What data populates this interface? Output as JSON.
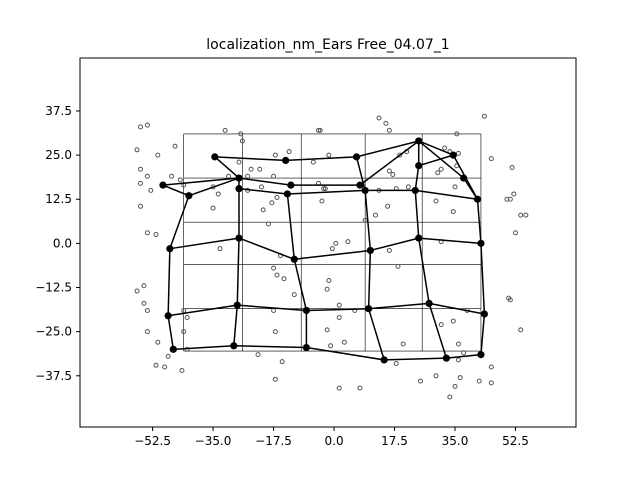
{
  "chart_data": {
    "type": "scatter",
    "title": "localization_nm_Ears Free_04.07_1",
    "xlabel": "",
    "ylabel": "",
    "xlim": [
      -73.5,
      70
    ],
    "ylim": [
      -52,
      52.5
    ],
    "xticks": [
      -52.5,
      -35.0,
      -17.5,
      0.0,
      17.5,
      35.0,
      52.5
    ],
    "yticks": [
      37.5,
      25.0,
      12.5,
      0.0,
      -12.5,
      -25.0,
      -37.5
    ],
    "xtick_labels": [
      "−52.5",
      "−35.0",
      "−17.5",
      "0.0",
      "17.5",
      "35.0",
      "52.5"
    ],
    "ytick_labels": [
      "37.5",
      "25.0",
      "12.5",
      "0.0",
      "−12.5",
      "−25.0",
      "−37.5"
    ],
    "grid": {
      "x_lines": [
        -43.5,
        -26.5,
        -9.5,
        9.0,
        25.5,
        42.5
      ],
      "y_lines": [
        31.0,
        18.5,
        6.0,
        -6.0,
        -18.5,
        -30.5
      ]
    },
    "colors": {
      "mesh": "#000000",
      "scatter": "#555555",
      "grid": "#000000"
    },
    "mesh_nodes": [
      [
        -49.5,
        16.5
      ],
      [
        -42.0,
        13.5
      ],
      [
        -34.5,
        24.5
      ],
      [
        -27.5,
        18.5
      ],
      [
        -14.0,
        23.5
      ],
      [
        -12.5,
        16.5
      ],
      [
        6.5,
        24.5
      ],
      [
        7.5,
        16.5
      ],
      [
        24.5,
        29.0
      ],
      [
        34.5,
        25.0
      ],
      [
        37.5,
        18.5
      ],
      [
        41.5,
        12.5
      ],
      [
        -27.5,
        15.5
      ],
      [
        -13.5,
        14.0
      ],
      [
        9.0,
        15.0
      ],
      [
        23.5,
        15.0
      ],
      [
        24.5,
        22.0
      ],
      [
        -47.5,
        -1.5
      ],
      [
        -27.5,
        1.5
      ],
      [
        -11.5,
        -4.5
      ],
      [
        10.5,
        -2.0
      ],
      [
        24.5,
        1.5
      ],
      [
        42.5,
        0.0
      ],
      [
        -48.0,
        -20.5
      ],
      [
        -28.0,
        -17.5
      ],
      [
        -8.0,
        -19.0
      ],
      [
        10.0,
        -18.5
      ],
      [
        27.5,
        -17.0
      ],
      [
        43.5,
        -20.0
      ],
      [
        -46.5,
        -30.0
      ],
      [
        -29.0,
        -29.0
      ],
      [
        -8.0,
        -29.5
      ],
      [
        14.5,
        -33.0
      ],
      [
        32.5,
        -32.5
      ],
      [
        42.5,
        -31.5
      ]
    ],
    "mesh_edges": [
      [
        0,
        1
      ],
      [
        1,
        3
      ],
      [
        3,
        2
      ],
      [
        2,
        4
      ],
      [
        4,
        6
      ],
      [
        6,
        8
      ],
      [
        8,
        9
      ],
      [
        9,
        11
      ],
      [
        0,
        3
      ],
      [
        3,
        5
      ],
      [
        5,
        7
      ],
      [
        7,
        8
      ],
      [
        8,
        10
      ],
      [
        10,
        11
      ],
      [
        3,
        12
      ],
      [
        12,
        13
      ],
      [
        13,
        14
      ],
      [
        14,
        15
      ],
      [
        15,
        11
      ],
      [
        6,
        14
      ],
      [
        8,
        16
      ],
      [
        16,
        9
      ],
      [
        16,
        15
      ],
      [
        1,
        17
      ],
      [
        12,
        18
      ],
      [
        13,
        19
      ],
      [
        14,
        20
      ],
      [
        15,
        21
      ],
      [
        11,
        22
      ],
      [
        17,
        18
      ],
      [
        18,
        19
      ],
      [
        19,
        20
      ],
      [
        20,
        21
      ],
      [
        21,
        22
      ],
      [
        17,
        23
      ],
      [
        18,
        24
      ],
      [
        19,
        25
      ],
      [
        20,
        26
      ],
      [
        21,
        27
      ],
      [
        22,
        28
      ],
      [
        23,
        24
      ],
      [
        24,
        25
      ],
      [
        25,
        26
      ],
      [
        26,
        27
      ],
      [
        27,
        28
      ],
      [
        23,
        29
      ],
      [
        24,
        30
      ],
      [
        25,
        31
      ],
      [
        26,
        32
      ],
      [
        27,
        33
      ],
      [
        28,
        34
      ],
      [
        29,
        30
      ],
      [
        30,
        31
      ],
      [
        31,
        32
      ],
      [
        32,
        33
      ],
      [
        33,
        34
      ]
    ],
    "scatter_points": [
      [
        -56,
        33
      ],
      [
        -54,
        33.5
      ],
      [
        -57,
        26.5
      ],
      [
        -51,
        25
      ],
      [
        -46,
        27.5
      ],
      [
        -56,
        21
      ],
      [
        -56,
        17
      ],
      [
        -54,
        19
      ],
      [
        -53,
        15
      ],
      [
        -56,
        10.5
      ],
      [
        -54,
        3
      ],
      [
        -51.5,
        2.5
      ],
      [
        -55,
        -12
      ],
      [
        -57,
        -13.5
      ],
      [
        -55,
        -17
      ],
      [
        -54,
        -19
      ],
      [
        -54,
        -25
      ],
      [
        -51,
        -28
      ],
      [
        -48,
        -32
      ],
      [
        -49,
        -35
      ],
      [
        -51.5,
        -34.5
      ],
      [
        -43.5,
        -19
      ],
      [
        -42.5,
        -21
      ],
      [
        -43.5,
        -25
      ],
      [
        -44,
        -36
      ],
      [
        -42.5,
        -30
      ],
      [
        -47,
        19
      ],
      [
        -44.5,
        18
      ],
      [
        -43.5,
        16.5
      ],
      [
        -35,
        16
      ],
      [
        -33.5,
        14
      ],
      [
        -30.5,
        19
      ],
      [
        -31.5,
        32
      ],
      [
        -27,
        31
      ],
      [
        -26.5,
        29
      ],
      [
        -25,
        19
      ],
      [
        -24,
        21
      ],
      [
        -27.5,
        23
      ],
      [
        -21.5,
        21
      ],
      [
        -17,
        25
      ],
      [
        -13,
        26
      ],
      [
        -18,
        11.5
      ],
      [
        -16.5,
        13
      ],
      [
        -20.5,
        9.5
      ],
      [
        -19,
        5.5
      ],
      [
        -21,
        16
      ],
      [
        -25,
        15
      ],
      [
        -17.5,
        19
      ],
      [
        -35,
        10
      ],
      [
        -33,
        -1.5
      ],
      [
        -16.5,
        -9
      ],
      [
        -17.5,
        -7
      ],
      [
        -14.5,
        -10
      ],
      [
        -15.5,
        -3.5
      ],
      [
        -11.5,
        -14.5
      ],
      [
        -17.5,
        -19
      ],
      [
        -22,
        -31.5
      ],
      [
        -15,
        -33.5
      ],
      [
        -17,
        -38.5
      ],
      [
        -17,
        -25
      ],
      [
        -4.5,
        17
      ],
      [
        -3,
        15.5
      ],
      [
        -2.5,
        15.5
      ],
      [
        -3.5,
        12
      ],
      [
        -4.5,
        32
      ],
      [
        -4,
        32
      ],
      [
        -1.5,
        25
      ],
      [
        -6,
        23
      ],
      [
        -0.5,
        -1.5
      ],
      [
        0.5,
        0
      ],
      [
        4,
        0.5
      ],
      [
        -1.5,
        -10.5
      ],
      [
        -2,
        -13
      ],
      [
        -2,
        -24.5
      ],
      [
        1.5,
        -17.5
      ],
      [
        1.5,
        -21
      ],
      [
        -1,
        -29
      ],
      [
        3,
        -28
      ],
      [
        1.5,
        -41
      ],
      [
        7.5,
        -41
      ],
      [
        6,
        -19
      ],
      [
        9,
        6.5
      ],
      [
        13,
        35.5
      ],
      [
        15,
        34
      ],
      [
        16,
        32
      ],
      [
        16,
        20.5
      ],
      [
        19,
        25
      ],
      [
        21,
        26
      ],
      [
        17,
        19.5
      ],
      [
        18,
        15.5
      ],
      [
        13,
        15
      ],
      [
        21.5,
        16
      ],
      [
        12,
        8
      ],
      [
        15.5,
        10.5
      ],
      [
        16,
        -2
      ],
      [
        18.5,
        -6.5
      ],
      [
        20,
        -28.5
      ],
      [
        18,
        -34
      ],
      [
        32,
        27
      ],
      [
        33.5,
        26
      ],
      [
        35.5,
        31
      ],
      [
        36,
        25.5
      ],
      [
        31,
        21
      ],
      [
        35,
        16
      ],
      [
        34.5,
        9
      ],
      [
        29.5,
        12
      ],
      [
        31,
        0.5
      ],
      [
        35.5,
        22
      ],
      [
        30,
        20
      ],
      [
        31,
        -23
      ],
      [
        34.5,
        -22
      ],
      [
        36,
        -28.5
      ],
      [
        38.5,
        -19
      ],
      [
        37.5,
        -31
      ],
      [
        36,
        -33
      ],
      [
        36.5,
        -38
      ],
      [
        35,
        -40.5
      ],
      [
        29.5,
        -37.5
      ],
      [
        25,
        -39
      ],
      [
        33.5,
        -43.5
      ],
      [
        42,
        -39
      ],
      [
        45.5,
        -39.5
      ],
      [
        45.5,
        -35
      ],
      [
        43.5,
        36
      ],
      [
        45.5,
        24
      ],
      [
        51.5,
        21.5
      ],
      [
        50,
        12.5
      ],
      [
        51,
        12.5
      ],
      [
        52,
        14
      ],
      [
        52.5,
        3
      ],
      [
        54,
        8
      ],
      [
        55.5,
        8
      ],
      [
        50.5,
        -15.5
      ],
      [
        51,
        -16
      ],
      [
        54,
        -24.5
      ]
    ]
  }
}
